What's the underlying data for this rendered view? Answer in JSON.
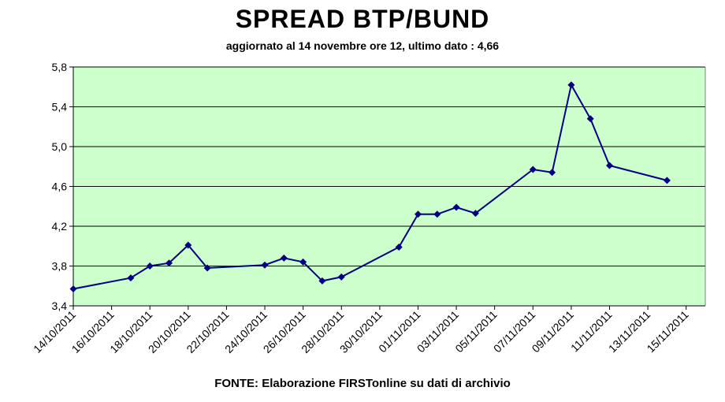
{
  "chart_data": {
    "type": "line",
    "title": "SPREAD BTP/BUND",
    "subtitle": "aggiornato al 14 novembre ore 12, ultimo dato : 4,66",
    "source": "FONTE: Elaborazione FIRSTonline su dati di archivio",
    "xlabel": "",
    "ylabel": "",
    "ylim": [
      3.4,
      5.8
    ],
    "y_ticks": [
      "3,4",
      "3,8",
      "4,2",
      "4,6",
      "5,0",
      "5,4",
      "5,8"
    ],
    "x_tick_labels": [
      "14/10/2011",
      "16/10/2011",
      "18/10/2011",
      "20/10/2011",
      "22/10/2011",
      "24/10/2011",
      "26/10/2011",
      "28/10/2011",
      "30/10/2011",
      "01/11/2011",
      "03/11/2011",
      "05/11/2011",
      "07/11/2011",
      "09/11/2011",
      "11/11/2011",
      "13/11/2011",
      "15/11/2011"
    ],
    "grid": true,
    "colors": {
      "plot_bg": "#ccffcc",
      "line": "#000080",
      "grid": "#000000"
    },
    "series": [
      {
        "points": [
          [
            "2011-10-14",
            3.57
          ],
          [
            "2011-10-17",
            3.68
          ],
          [
            "2011-10-18",
            3.8
          ],
          [
            "2011-10-19",
            3.83
          ],
          [
            "2011-10-20",
            4.01
          ],
          [
            "2011-10-21",
            3.78
          ],
          [
            "2011-10-24",
            3.81
          ],
          [
            "2011-10-25",
            3.88
          ],
          [
            "2011-10-26",
            3.84
          ],
          [
            "2011-10-27",
            3.65
          ],
          [
            "2011-10-28",
            3.69
          ],
          [
            "2011-10-31",
            3.99
          ],
          [
            "2011-11-01",
            4.32
          ],
          [
            "2011-11-02",
            4.32
          ],
          [
            "2011-11-03",
            4.39
          ],
          [
            "2011-11-04",
            4.33
          ],
          [
            "2011-11-07",
            4.77
          ],
          [
            "2011-11-08",
            4.74
          ],
          [
            "2011-11-09",
            5.62
          ],
          [
            "2011-11-10",
            5.28
          ],
          [
            "2011-11-11",
            4.81
          ],
          [
            "2011-11-14",
            4.66
          ]
        ]
      }
    ]
  }
}
